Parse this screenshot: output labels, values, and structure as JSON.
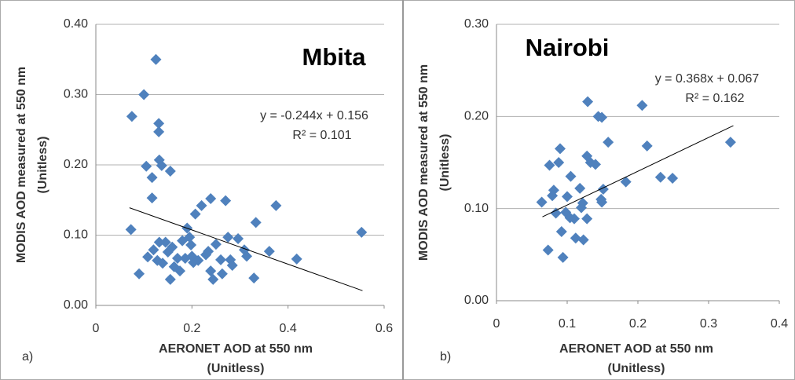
{
  "chart_data": [
    {
      "type": "scatter",
      "title": "Mbita",
      "panel_label": "a)",
      "xlabel": [
        "AERONET AOD at 550 nm",
        "(Unitless)"
      ],
      "ylabel": [
        "MODIS AOD measured at 550 nm",
        "(Unitless)"
      ],
      "annotations": [
        "y = -0.244x + 0.156",
        "R² = 0.101"
      ],
      "xlim": [
        0,
        0.6
      ],
      "xticks": [
        0,
        0.2,
        0.4,
        0.6
      ],
      "ylim": [
        0,
        0.4
      ],
      "yticks": [
        {
          "value": 0,
          "label": "0.00"
        },
        {
          "value": 0.1,
          "label": "0.10"
        },
        {
          "value": 0.2,
          "label": "0.20"
        },
        {
          "value": 0.3,
          "label": "0.30"
        },
        {
          "value": 0.4,
          "label": "0.40"
        }
      ],
      "grid": true,
      "series": [
        {
          "color": "#4f81bd",
          "x": [
            0.073,
            0.075,
            0.1,
            0.125,
            0.09,
            0.105,
            0.117,
            0.117,
            0.131,
            0.131,
            0.132,
            0.137,
            0.155,
            0.108,
            0.12,
            0.128,
            0.132,
            0.139,
            0.145,
            0.15,
            0.155,
            0.159,
            0.163,
            0.17,
            0.175,
            0.18,
            0.186,
            0.19,
            0.195,
            0.198,
            0.2,
            0.203,
            0.207,
            0.213,
            0.22,
            0.229,
            0.234,
            0.239,
            0.239,
            0.244,
            0.25,
            0.26,
            0.263,
            0.27,
            0.275,
            0.28,
            0.284,
            0.296,
            0.309,
            0.314,
            0.329,
            0.333,
            0.361,
            0.375,
            0.418,
            0.553
          ],
          "values": [
            0.108,
            0.269,
            0.3,
            0.35,
            0.045,
            0.198,
            0.182,
            0.153,
            0.259,
            0.247,
            0.207,
            0.199,
            0.191,
            0.069,
            0.079,
            0.064,
            0.09,
            0.06,
            0.09,
            0.076,
            0.037,
            0.083,
            0.055,
            0.067,
            0.049,
            0.092,
            0.067,
            0.11,
            0.097,
            0.086,
            0.07,
            0.061,
            0.13,
            0.064,
            0.142,
            0.072,
            0.077,
            0.152,
            0.049,
            0.037,
            0.087,
            0.065,
            0.045,
            0.149,
            0.097,
            0.065,
            0.057,
            0.095,
            0.079,
            0.07,
            0.039,
            0.118,
            0.077,
            0.142,
            0.066,
            0.104
          ]
        }
      ],
      "trendline": {
        "color": "#000000",
        "x": [
          0.07,
          0.555
        ],
        "values": [
          0.139,
          0.021
        ]
      }
    },
    {
      "type": "scatter",
      "title": "Nairobi",
      "panel_label": "b)",
      "xlabel": [
        "AERONET AOD at 550 nm",
        "(Unitless)"
      ],
      "ylabel": [
        "MODIS AOD measured at 550 nm",
        "(Unitless)"
      ],
      "annotations": [
        "y = 0.368x + 0.067",
        "R² = 0.162"
      ],
      "xlim": [
        0,
        0.4
      ],
      "xticks": [
        0,
        0.1,
        0.2,
        0.3,
        0.4
      ],
      "ylim": [
        0,
        0.3
      ],
      "yticks": [
        {
          "value": 0,
          "label": "0.00"
        },
        {
          "value": 0.1,
          "label": "0.10"
        },
        {
          "value": 0.2,
          "label": "0.20"
        },
        {
          "value": 0.3,
          "label": "0.30"
        }
      ],
      "grid": true,
      "series": [
        {
          "color": "#4f81bd",
          "x": [
            0.064,
            0.073,
            0.075,
            0.079,
            0.081,
            0.084,
            0.088,
            0.09,
            0.092,
            0.094,
            0.098,
            0.1,
            0.104,
            0.105,
            0.11,
            0.112,
            0.118,
            0.12,
            0.122,
            0.123,
            0.128,
            0.129,
            0.128,
            0.133,
            0.14,
            0.144,
            0.149,
            0.148,
            0.151,
            0.149,
            0.158,
            0.183,
            0.206,
            0.213,
            0.232,
            0.249,
            0.331
          ],
          "values": [
            0.107,
            0.055,
            0.147,
            0.114,
            0.12,
            0.095,
            0.15,
            0.165,
            0.075,
            0.047,
            0.096,
            0.113,
            0.09,
            0.135,
            0.089,
            0.068,
            0.122,
            0.101,
            0.106,
            0.066,
            0.089,
            0.216,
            0.157,
            0.15,
            0.148,
            0.2,
            0.199,
            0.11,
            0.121,
            0.107,
            0.172,
            0.129,
            0.212,
            0.168,
            0.134,
            0.133,
            0.172
          ]
        }
      ],
      "trendline": {
        "color": "#000000",
        "x": [
          0.065,
          0.335
        ],
        "values": [
          0.091,
          0.19
        ]
      }
    }
  ]
}
